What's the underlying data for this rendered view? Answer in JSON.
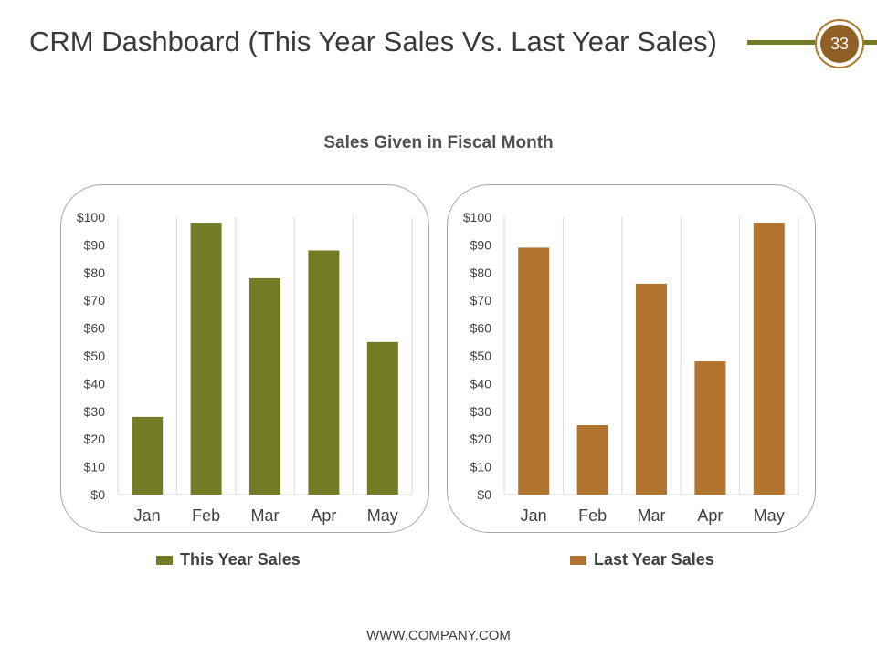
{
  "slide": {
    "title": "CRM Dashboard (This Year Sales Vs. Last Year Sales)",
    "page_number": "33",
    "footer": "WWW.COMPANY.COM",
    "colors": {
      "olive": "#737b24",
      "copper": "#b0742f",
      "badge": "#8f5f25"
    }
  },
  "chart_data": [
    {
      "type": "bar",
      "title": "Sales Given in Fiscal Month",
      "categories": [
        "Jan",
        "Feb",
        "Mar",
        "Apr",
        "May"
      ],
      "series": [
        {
          "name": "This Year Sales",
          "values": [
            28,
            98,
            78,
            88,
            55
          ],
          "color": "#737b24"
        }
      ],
      "ylim": [
        0,
        100
      ],
      "y_ticks": [
        "$0",
        "$10",
        "$20",
        "$30",
        "$40",
        "$50",
        "$60",
        "$70",
        "$80",
        "$90",
        "$100"
      ],
      "grid": "vertical",
      "legend": "bottom"
    },
    {
      "type": "bar",
      "categories": [
        "Jan",
        "Feb",
        "Mar",
        "Apr",
        "May"
      ],
      "series": [
        {
          "name": "Last Year Sales",
          "values": [
            89,
            25,
            76,
            48,
            98
          ],
          "color": "#b0742f"
        }
      ],
      "ylim": [
        0,
        100
      ],
      "y_ticks": [
        "$0",
        "$10",
        "$20",
        "$30",
        "$40",
        "$50",
        "$60",
        "$70",
        "$80",
        "$90",
        "$100"
      ],
      "grid": "vertical",
      "legend": "bottom"
    }
  ]
}
